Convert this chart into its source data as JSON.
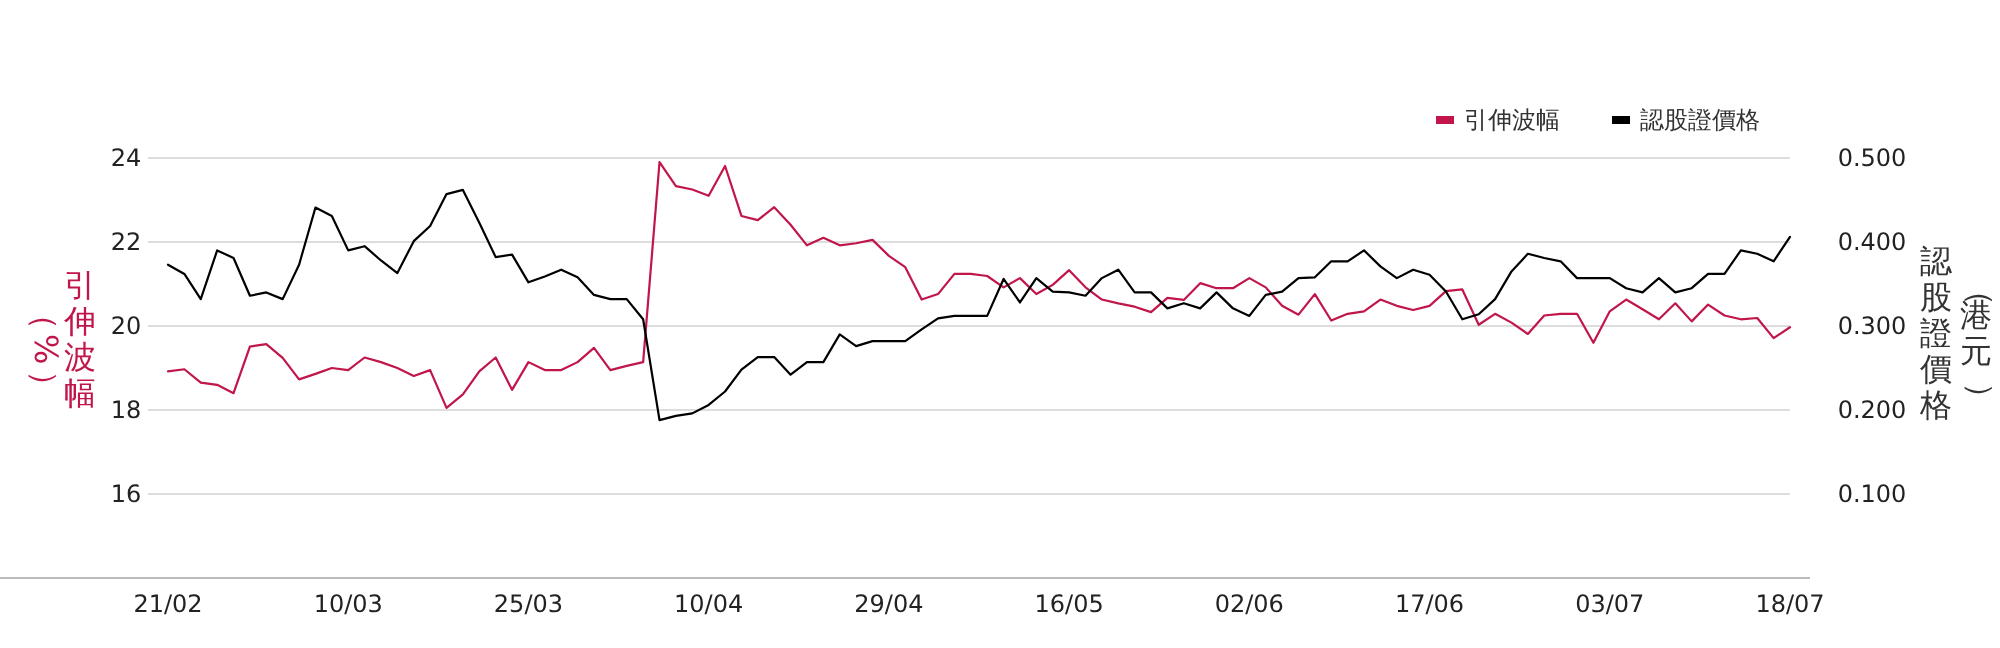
{
  "chart_data": {
    "type": "line",
    "ylabel": "引伸波幅（%）",
    "y2label": "認股證價格（港元）",
    "categories": [
      "21/02",
      null,
      null,
      null,
      null,
      null,
      null,
      null,
      null,
      null,
      null,
      "10/03",
      null,
      null,
      null,
      null,
      null,
      null,
      null,
      null,
      null,
      null,
      "25/03",
      null,
      null,
      null,
      null,
      null,
      null,
      null,
      null,
      null,
      null,
      "10/04",
      null,
      null,
      null,
      null,
      null,
      null,
      null,
      null,
      null,
      null,
      "29/04",
      null,
      null,
      null,
      null,
      null,
      null,
      null,
      null,
      null,
      null,
      "16/05",
      null,
      null,
      null,
      null,
      null,
      null,
      null,
      null,
      null,
      null,
      "02/06",
      null,
      null,
      null,
      null,
      null,
      null,
      null,
      null,
      null,
      null,
      "17/06",
      null,
      null,
      null,
      null,
      null,
      null,
      null,
      null,
      null,
      null,
      "03/07",
      null,
      null,
      null,
      null,
      null,
      null,
      null,
      null,
      null,
      null,
      "18/07"
    ],
    "ylim": [
      14,
      24
    ],
    "yticks": [
      16,
      18,
      20,
      22,
      24
    ],
    "y2lim": [
      0,
      0.5
    ],
    "y2ticks": [
      {
        "value": 0.1,
        "label": "0.100"
      },
      {
        "value": 0.2,
        "label": "0.200"
      },
      {
        "value": 0.3,
        "label": "0.300"
      },
      {
        "value": 0.4,
        "label": "0.400"
      },
      {
        "value": 0.5,
        "label": "0.500"
      }
    ],
    "grid": "y",
    "legend": "top right",
    "series": [
      {
        "name": "引伸波幅",
        "color": "#c0164a",
        "values": [
          18.92,
          18.97,
          18.65,
          18.6,
          18.4,
          19.51,
          19.57,
          19.24,
          18.73,
          18.86,
          19.0,
          18.95,
          19.25,
          19.14,
          19.0,
          18.81,
          18.95,
          18.05,
          18.37,
          18.92,
          19.25,
          18.48,
          19.14,
          18.95,
          18.95,
          19.14,
          19.48,
          18.95,
          19.05,
          19.14,
          23.9,
          23.33,
          23.25,
          23.1,
          23.81,
          22.62,
          22.52,
          22.83,
          22.41,
          21.92,
          22.1,
          21.92,
          21.97,
          22.05,
          21.67,
          21.4,
          20.63,
          20.76,
          21.24,
          21.24,
          21.19,
          20.92,
          21.14,
          20.76,
          20.98,
          21.33,
          20.92,
          20.63,
          20.54,
          20.46,
          20.33,
          20.67,
          20.62,
          21.02,
          20.9,
          20.9,
          21.14,
          20.92,
          20.48,
          20.27,
          20.76,
          20.13,
          20.29,
          20.35,
          20.63,
          20.48,
          20.38,
          20.48,
          20.83,
          20.87,
          20.03,
          20.29,
          20.08,
          19.81,
          20.25,
          20.29,
          20.29,
          19.6,
          20.35,
          20.63,
          20.4,
          20.16,
          20.54,
          20.11,
          20.51,
          20.25,
          20.16,
          20.19,
          19.71,
          19.97
        ]
      },
      {
        "name": "認股證價格",
        "color": "#000000",
        "axis": "y2",
        "values": [
          0.373,
          0.362,
          0.332,
          0.39,
          0.381,
          0.336,
          0.34,
          0.332,
          0.373,
          0.441,
          0.431,
          0.39,
          0.395,
          0.378,
          0.363,
          0.401,
          0.419,
          0.457,
          0.462,
          0.423,
          0.382,
          0.385,
          0.352,
          0.359,
          0.367,
          0.358,
          0.337,
          0.332,
          0.332,
          0.308,
          0.188,
          0.193,
          0.196,
          0.206,
          0.222,
          0.248,
          0.263,
          0.263,
          0.242,
          0.257,
          0.257,
          0.29,
          0.276,
          0.282,
          0.282,
          0.282,
          0.296,
          0.309,
          0.312,
          0.312,
          0.312,
          0.356,
          0.328,
          0.357,
          0.341,
          0.34,
          0.336,
          0.357,
          0.367,
          0.34,
          0.34,
          0.321,
          0.327,
          0.321,
          0.34,
          0.321,
          0.312,
          0.337,
          0.341,
          0.357,
          0.358,
          0.377,
          0.377,
          0.39,
          0.371,
          0.357,
          0.367,
          0.361,
          0.341,
          0.308,
          0.314,
          0.332,
          0.365,
          0.386,
          0.381,
          0.377,
          0.357,
          0.357,
          0.357,
          0.345,
          0.34,
          0.357,
          0.34,
          0.345,
          0.362,
          0.362,
          0.39,
          0.386,
          0.377,
          0.406
        ]
      }
    ]
  }
}
